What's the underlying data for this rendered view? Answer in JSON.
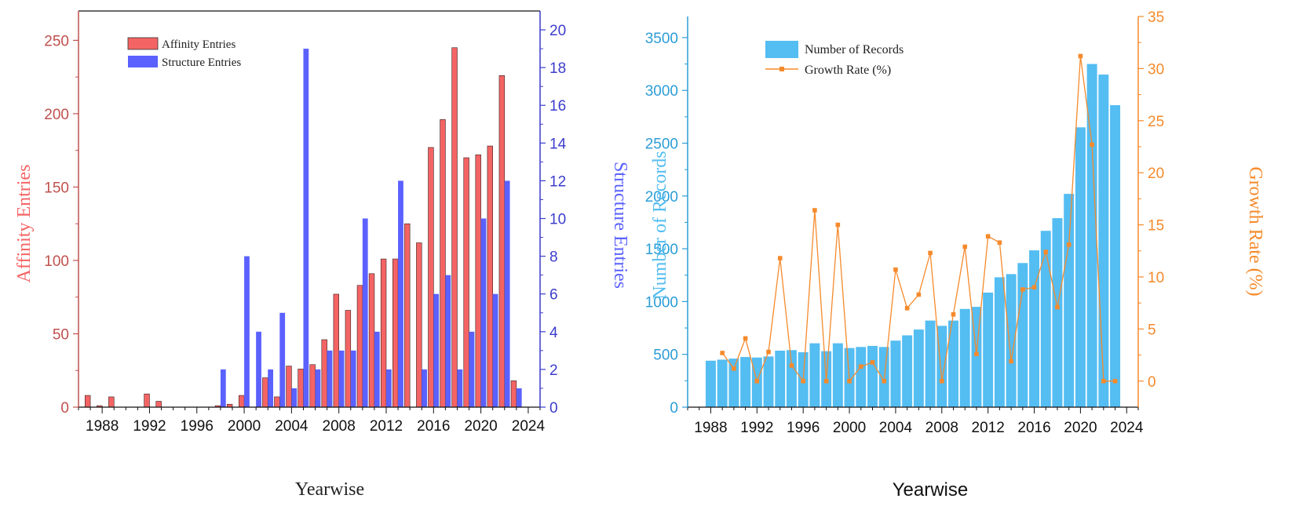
{
  "chart_data": [
    {
      "type": "bar",
      "xlabel": "Yearwise",
      "ylabel": "Affinity Entries",
      "y2label": "Structure Entries",
      "xlim": [
        1986,
        2025
      ],
      "ylim": [
        0,
        270
      ],
      "y2lim": [
        0,
        21
      ],
      "xticks": [
        "1988",
        "1992",
        "1996",
        "2000",
        "2004",
        "2008",
        "2012",
        "2016",
        "2020",
        "2024"
      ],
      "yticks": [
        "0",
        "50",
        "100",
        "150",
        "200",
        "250"
      ],
      "y2ticks": [
        "0",
        "2",
        "4",
        "6",
        "8",
        "10",
        "12",
        "14",
        "16",
        "18",
        "20"
      ],
      "legend_position": "top-left",
      "colors": {
        "affinity": "#f46464",
        "structure": "#5b61ff",
        "left_axis": "#c0504d",
        "right_axis": "#3c3ccd"
      },
      "series": [
        {
          "name": "Affinity Entries",
          "axis": "left",
          "x": [
            1987,
            1988,
            1989,
            1990,
            1991,
            1992,
            1993,
            1994,
            1995,
            1996,
            1997,
            1998,
            1999,
            2000,
            2001,
            2002,
            2003,
            2004,
            2005,
            2006,
            2007,
            2008,
            2009,
            2010,
            2011,
            2012,
            2013,
            2014,
            2015,
            2016,
            2017,
            2018,
            2019,
            2020,
            2021,
            2022,
            2023
          ],
          "values": [
            8,
            1,
            7,
            0,
            0,
            9,
            4,
            0,
            0,
            0,
            0,
            1,
            2,
            8,
            0,
            20,
            7,
            28,
            26,
            29,
            46,
            77,
            66,
            83,
            91,
            101,
            101,
            125,
            112,
            177,
            196,
            245,
            170,
            172,
            178,
            226,
            18
          ]
        },
        {
          "name": "Structure Entries",
          "axis": "right",
          "x": [
            1987,
            1988,
            1989,
            1990,
            1991,
            1992,
            1993,
            1994,
            1995,
            1996,
            1997,
            1998,
            1999,
            2000,
            2001,
            2002,
            2003,
            2004,
            2005,
            2006,
            2007,
            2008,
            2009,
            2010,
            2011,
            2012,
            2013,
            2014,
            2015,
            2016,
            2017,
            2018,
            2019,
            2020,
            2021,
            2022,
            2023
          ],
          "values": [
            0,
            0,
            0,
            0,
            0,
            0,
            0,
            0,
            0,
            0,
            0,
            2,
            0,
            8,
            4,
            2,
            5,
            1,
            19,
            2,
            3,
            3,
            3,
            10,
            4,
            2,
            12,
            0,
            2,
            6,
            7,
            2,
            4,
            10,
            6,
            12,
            1
          ]
        }
      ]
    },
    {
      "type": "bar",
      "xlabel": "Yearwise",
      "ylabel": "Number of Records",
      "y2label": "Growth Rate (%)",
      "xlim": [
        1986,
        2025
      ],
      "ylim": [
        0,
        3700
      ],
      "y2lim": [
        -2.5,
        35
      ],
      "xticks": [
        "1988",
        "1992",
        "1996",
        "2000",
        "2004",
        "2008",
        "2012",
        "2016",
        "2020",
        "2024"
      ],
      "yticks": [
        "0",
        "500",
        "1000",
        "1500",
        "2000",
        "2500",
        "3000",
        "3500"
      ],
      "y2ticks": [
        "0",
        "5",
        "10",
        "15",
        "20",
        "25",
        "30",
        "35"
      ],
      "legend_position": "top-left",
      "colors": {
        "bars": "#54bdf2",
        "line": "#f58a2c",
        "left_axis": "#2c9dd6",
        "right_axis": "#f58a2c"
      },
      "series": [
        {
          "name": "Number of Records",
          "kind": "bar",
          "axis": "left",
          "x": [
            1988,
            1989,
            1990,
            1991,
            1992,
            1993,
            1994,
            1995,
            1996,
            1997,
            1998,
            1999,
            2000,
            2001,
            2002,
            2003,
            2004,
            2005,
            2006,
            2007,
            2008,
            2009,
            2010,
            2011,
            2012,
            2013,
            2014,
            2015,
            2016,
            2017,
            2018,
            2019,
            2020,
            2021,
            2022,
            2023
          ],
          "values": [
            440,
            450,
            460,
            475,
            470,
            480,
            535,
            540,
            520,
            605,
            530,
            605,
            560,
            570,
            580,
            570,
            630,
            680,
            735,
            820,
            770,
            820,
            930,
            950,
            1085,
            1230,
            1260,
            1365,
            1485,
            1670,
            1790,
            2020,
            2650,
            3250,
            3150,
            2860
          ]
        },
        {
          "name": "Growth Rate (%)",
          "kind": "line",
          "axis": "right",
          "x": [
            1989,
            1990,
            1991,
            1992,
            1993,
            1994,
            1995,
            1996,
            1997,
            1998,
            1999,
            2000,
            2001,
            2002,
            2003,
            2004,
            2005,
            2006,
            2007,
            2008,
            2009,
            2010,
            2011,
            2012,
            2013,
            2014,
            2015,
            2016,
            2017,
            2018,
            2019,
            2020,
            2021,
            2022,
            2023
          ],
          "values": [
            2.7,
            1.2,
            4.1,
            0,
            2.8,
            11.8,
            1.5,
            0,
            16.4,
            0,
            15.0,
            0,
            1.4,
            1.8,
            0,
            10.7,
            7.0,
            8.3,
            12.3,
            0,
            6.4,
            12.9,
            2.6,
            13.9,
            13.3,
            1.9,
            8.8,
            9.0,
            12.4,
            7.1,
            13.1,
            31.2,
            22.7,
            0,
            0
          ]
        }
      ]
    }
  ]
}
